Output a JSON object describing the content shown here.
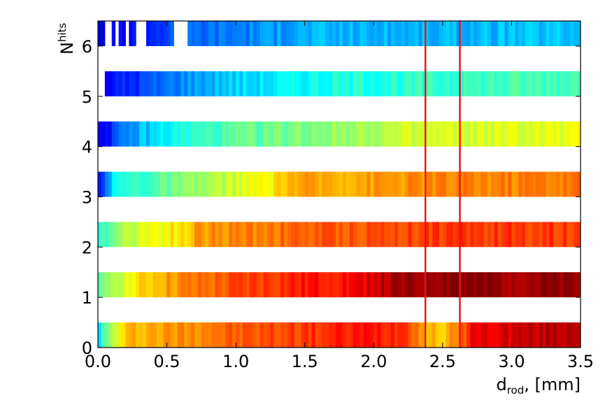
{
  "chart_data": {
    "type": "heatmap",
    "title": "",
    "xlabel": "d",
    "xlabel_sub": "rod",
    "xlabel_rest": ", [mm]",
    "ylabel": "N",
    "ylabel_sup": "hits",
    "xlim": [
      0.0,
      3.5
    ],
    "ylim": [
      0,
      6.5
    ],
    "x_ticks": [
      "0.0",
      "0.5",
      "1.0",
      "1.5",
      "2.0",
      "2.5",
      "3.0",
      "3.5"
    ],
    "y_ticks": [
      "0",
      "1",
      "2",
      "3",
      "4",
      "5",
      "6"
    ],
    "colormap": "jet",
    "grid": false,
    "vertical_lines": [
      {
        "x": 2.375,
        "color": "#e8161b"
      },
      {
        "x": 2.625,
        "color": "#e8161b"
      }
    ],
    "rows": [
      {
        "n_hits": 0,
        "x_start": 0.0,
        "x_end": 3.5,
        "profile": [
          [
            0.0,
            0.35
          ],
          [
            0.05,
            0.45
          ],
          [
            0.15,
            0.62
          ],
          [
            0.25,
            0.7
          ],
          [
            0.5,
            0.72
          ],
          [
            0.75,
            0.76
          ],
          [
            1.0,
            0.78
          ],
          [
            1.5,
            0.82
          ],
          [
            2.0,
            0.86
          ],
          [
            2.25,
            0.84
          ],
          [
            2.375,
            0.7
          ],
          [
            2.5,
            0.68
          ],
          [
            2.625,
            0.75
          ],
          [
            2.7,
            0.88
          ],
          [
            3.0,
            0.92
          ],
          [
            3.5,
            0.96
          ]
        ]
      },
      {
        "n_hits": 1,
        "x_start": 0.0,
        "x_end": 3.5,
        "profile": [
          [
            0.0,
            0.42
          ],
          [
            0.1,
            0.55
          ],
          [
            0.3,
            0.65
          ],
          [
            0.5,
            0.72
          ],
          [
            1.0,
            0.8
          ],
          [
            1.5,
            0.85
          ],
          [
            1.9,
            0.88
          ],
          [
            2.0,
            0.93
          ],
          [
            2.375,
            0.98
          ],
          [
            2.6,
            1.0
          ],
          [
            2.7,
            0.98
          ],
          [
            3.5,
            0.97
          ]
        ]
      },
      {
        "n_hits": 2,
        "x_start": 0.0,
        "x_end": 3.5,
        "profile": [
          [
            0.0,
            0.38
          ],
          [
            0.1,
            0.5
          ],
          [
            0.3,
            0.6
          ],
          [
            0.65,
            0.66
          ],
          [
            0.7,
            0.72
          ],
          [
            1.5,
            0.78
          ],
          [
            2.0,
            0.8
          ],
          [
            2.5,
            0.82
          ],
          [
            3.5,
            0.82
          ]
        ]
      },
      {
        "n_hits": 3,
        "x_start": 0.0,
        "x_end": 3.5,
        "profile": [
          [
            0.0,
            0.1
          ],
          [
            0.05,
            0.25
          ],
          [
            0.15,
            0.4
          ],
          [
            0.65,
            0.5
          ],
          [
            1.0,
            0.58
          ],
          [
            1.3,
            0.64
          ],
          [
            1.35,
            0.7
          ],
          [
            2.0,
            0.72
          ],
          [
            2.5,
            0.74
          ],
          [
            3.5,
            0.76
          ]
        ]
      },
      {
        "n_hits": 4,
        "x_start": 0.0,
        "x_end": 3.5,
        "profile": [
          [
            0.0,
            0.12
          ],
          [
            0.15,
            0.2
          ],
          [
            0.3,
            0.3
          ],
          [
            0.6,
            0.4
          ],
          [
            1.0,
            0.46
          ],
          [
            1.5,
            0.5
          ],
          [
            2.0,
            0.55
          ],
          [
            2.5,
            0.58
          ],
          [
            3.5,
            0.6
          ]
        ]
      },
      {
        "n_hits": 5,
        "x_start": 0.05,
        "x_end": 3.5,
        "profile": [
          [
            0.05,
            0.12
          ],
          [
            0.3,
            0.18
          ],
          [
            0.6,
            0.26
          ],
          [
            0.9,
            0.32
          ],
          [
            1.5,
            0.38
          ],
          [
            2.0,
            0.41
          ],
          [
            3.0,
            0.44
          ],
          [
            3.5,
            0.45
          ]
        ]
      },
      {
        "n_hits": 6,
        "x_start": 0.0,
        "x_end": 3.5,
        "gaps": [
          [
            0.045,
            0.09
          ],
          [
            0.115,
            0.14
          ],
          [
            0.19,
            0.22
          ],
          [
            0.25,
            0.34
          ],
          [
            0.54,
            0.64
          ]
        ],
        "profile": [
          [
            0.0,
            0.1
          ],
          [
            0.3,
            0.15
          ],
          [
            0.6,
            0.22
          ],
          [
            1.0,
            0.25
          ],
          [
            1.5,
            0.3
          ],
          [
            2.0,
            0.3
          ],
          [
            2.5,
            0.3
          ],
          [
            3.5,
            0.32
          ]
        ]
      }
    ]
  }
}
